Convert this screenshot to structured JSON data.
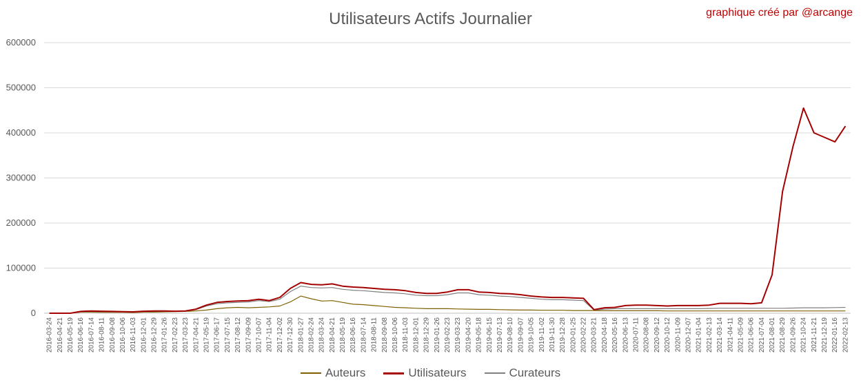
{
  "chart_data": {
    "type": "line",
    "title": "Utilisateurs Actifs Journalier",
    "credit": "graphique créé par @arcange",
    "ylim": [
      0,
      600000
    ],
    "yticks": [
      0,
      100000,
      200000,
      300000,
      400000,
      500000,
      600000
    ],
    "grid": "horizontal",
    "legend_position": "bottom",
    "x_tick_labels": [
      "2016-03-24",
      "2016-04-21",
      "2016-05-19",
      "2016-06-16",
      "2016-07-14",
      "2016-08-11",
      "2016-09-08",
      "2016-10-06",
      "2016-11-03",
      "2016-12-01",
      "2016-12-29",
      "2017-01-26",
      "2017-02-23",
      "2017-03-23",
      "2017-04-21",
      "2017-05-19",
      "2017-06-17",
      "2017-07-15",
      "2017-08-12",
      "2017-09-09",
      "2017-10-07",
      "2017-11-04",
      "2017-12-02",
      "2017-12-30",
      "2018-01-27",
      "2018-02-24",
      "2018-03-24",
      "2018-04-21",
      "2018-05-19",
      "2018-06-16",
      "2018-07-14",
      "2018-08-11",
      "2018-09-08",
      "2018-10-06",
      "2018-11-03",
      "2018-12-01",
      "2018-12-29",
      "2019-01-26",
      "2019-02-23",
      "2019-03-23",
      "2019-04-20",
      "2019-05-18",
      "2019-06-15",
      "2019-07-13",
      "2019-08-10",
      "2019-09-07",
      "2019-10-05",
      "2019-11-02",
      "2019-11-30",
      "2019-12-28",
      "2020-01-25",
      "2020-02-22",
      "2020-03-21",
      "2020-04-18",
      "2020-05-16",
      "2020-06-13",
      "2020-07-11",
      "2020-08-08",
      "2020-09-12",
      "2020-10-12",
      "2020-11-09",
      "2020-12-07",
      "2021-01-04",
      "2021-02-13",
      "2021-03-14",
      "2021-04-11",
      "2021-05-09",
      "2021-06-06",
      "2021-07-04",
      "2021-08-01",
      "2021-08-29",
      "2021-09-26",
      "2021-10-24",
      "2021-11-21",
      "2021-12-19",
      "2022-01-16",
      "2022-02-13"
    ],
    "series": [
      {
        "name": "Auteurs",
        "color": "#7f6000",
        "points": [
          [
            0,
            0
          ],
          [
            2,
            0
          ],
          [
            3,
            2500
          ],
          [
            4,
            2500
          ],
          [
            5,
            2000
          ],
          [
            6,
            2000
          ],
          [
            7,
            2000
          ],
          [
            8,
            1500
          ],
          [
            9,
            2500
          ],
          [
            10,
            2500
          ],
          [
            11,
            3000
          ],
          [
            12,
            3500
          ],
          [
            13,
            4000
          ],
          [
            14,
            5000
          ],
          [
            15,
            7000
          ],
          [
            16,
            10000
          ],
          [
            17,
            12000
          ],
          [
            18,
            13000
          ],
          [
            19,
            12000
          ],
          [
            20,
            13000
          ],
          [
            21,
            14000
          ],
          [
            22,
            16000
          ],
          [
            23,
            25000
          ],
          [
            24,
            38000
          ],
          [
            25,
            32000
          ],
          [
            26,
            27000
          ],
          [
            27,
            28000
          ],
          [
            28,
            24000
          ],
          [
            29,
            20000
          ],
          [
            30,
            19000
          ],
          [
            31,
            17000
          ],
          [
            32,
            15000
          ],
          [
            33,
            13000
          ],
          [
            34,
            12000
          ],
          [
            35,
            11000
          ],
          [
            36,
            10000
          ],
          [
            37,
            10000
          ],
          [
            38,
            10000
          ],
          [
            39,
            9500
          ],
          [
            40,
            9000
          ],
          [
            41,
            8500
          ],
          [
            42,
            8500
          ],
          [
            43,
            8000
          ],
          [
            44,
            7500
          ],
          [
            45,
            7000
          ],
          [
            46,
            7000
          ],
          [
            47,
            6500
          ],
          [
            48,
            6500
          ],
          [
            49,
            6500
          ],
          [
            50,
            6000
          ],
          [
            51,
            6000
          ],
          [
            52,
            6000
          ],
          [
            53,
            5500
          ],
          [
            54,
            5500
          ],
          [
            55,
            5500
          ],
          [
            56,
            5500
          ],
          [
            57,
            5500
          ],
          [
            58,
            5500
          ],
          [
            59,
            5000
          ],
          [
            60,
            5000
          ],
          [
            61,
            5000
          ],
          [
            62,
            5000
          ],
          [
            63,
            5000
          ],
          [
            64,
            5000
          ],
          [
            65,
            5000
          ],
          [
            66,
            5000
          ],
          [
            67,
            5000
          ],
          [
            68,
            5000
          ],
          [
            69,
            5000
          ],
          [
            70,
            5000
          ],
          [
            71,
            5000
          ],
          [
            72,
            5000
          ],
          [
            73,
            5000
          ],
          [
            74,
            5000
          ],
          [
            75,
            5000
          ],
          [
            76,
            5000
          ]
        ]
      },
      {
        "name": "Utilisateurs",
        "color": "#a50000",
        "points": [
          [
            0,
            0
          ],
          [
            2,
            0
          ],
          [
            3,
            4000
          ],
          [
            4,
            5000
          ],
          [
            5,
            4500
          ],
          [
            6,
            4000
          ],
          [
            7,
            3500
          ],
          [
            8,
            3000
          ],
          [
            9,
            4500
          ],
          [
            10,
            5000
          ],
          [
            11,
            5000
          ],
          [
            12,
            4500
          ],
          [
            13,
            5000
          ],
          [
            14,
            9000
          ],
          [
            15,
            18000
          ],
          [
            16,
            24000
          ],
          [
            17,
            26000
          ],
          [
            18,
            27000
          ],
          [
            19,
            28000
          ],
          [
            20,
            31000
          ],
          [
            21,
            28000
          ],
          [
            22,
            35000
          ],
          [
            23,
            55000
          ],
          [
            24,
            68000
          ],
          [
            25,
            64000
          ],
          [
            26,
            63000
          ],
          [
            27,
            65000
          ],
          [
            28,
            60000
          ],
          [
            29,
            58000
          ],
          [
            30,
            57000
          ],
          [
            31,
            55000
          ],
          [
            32,
            53000
          ],
          [
            33,
            52000
          ],
          [
            34,
            50000
          ],
          [
            35,
            46000
          ],
          [
            36,
            44000
          ],
          [
            37,
            44000
          ],
          [
            38,
            47000
          ],
          [
            39,
            52000
          ],
          [
            40,
            52000
          ],
          [
            41,
            47000
          ],
          [
            42,
            46000
          ],
          [
            43,
            44000
          ],
          [
            44,
            43000
          ],
          [
            45,
            41000
          ],
          [
            46,
            38000
          ],
          [
            47,
            36000
          ],
          [
            48,
            35000
          ],
          [
            49,
            35000
          ],
          [
            50,
            34000
          ],
          [
            51,
            33000
          ],
          [
            52,
            8000
          ],
          [
            53,
            12000
          ],
          [
            54,
            13000
          ],
          [
            55,
            17000
          ],
          [
            56,
            18000
          ],
          [
            57,
            18000
          ],
          [
            58,
            17000
          ],
          [
            59,
            16000
          ],
          [
            60,
            17000
          ],
          [
            61,
            17000
          ],
          [
            62,
            17000
          ],
          [
            63,
            18000
          ],
          [
            64,
            22000
          ],
          [
            65,
            22000
          ],
          [
            66,
            22000
          ],
          [
            67,
            21000
          ],
          [
            68,
            23000
          ],
          [
            69,
            85000
          ],
          [
            70,
            270000
          ],
          [
            71,
            370000
          ],
          [
            72,
            455000
          ],
          [
            73,
            400000
          ],
          [
            74,
            390000
          ],
          [
            75,
            380000
          ],
          [
            76,
            415000
          ]
        ]
      },
      {
        "name": "Curateurs",
        "color": "#7f7f7f",
        "points": [
          [
            0,
            0
          ],
          [
            2,
            0
          ],
          [
            3,
            3000
          ],
          [
            4,
            4000
          ],
          [
            5,
            3500
          ],
          [
            6,
            3000
          ],
          [
            7,
            3000
          ],
          [
            8,
            2500
          ],
          [
            9,
            3500
          ],
          [
            10,
            4000
          ],
          [
            11,
            4500
          ],
          [
            12,
            4000
          ],
          [
            13,
            4500
          ],
          [
            14,
            8000
          ],
          [
            15,
            16000
          ],
          [
            16,
            21000
          ],
          [
            17,
            23000
          ],
          [
            18,
            24000
          ],
          [
            19,
            25000
          ],
          [
            20,
            28000
          ],
          [
            21,
            26000
          ],
          [
            22,
            31000
          ],
          [
            23,
            48000
          ],
          [
            24,
            60000
          ],
          [
            25,
            57000
          ],
          [
            26,
            56000
          ],
          [
            27,
            57000
          ],
          [
            28,
            53000
          ],
          [
            29,
            51000
          ],
          [
            30,
            50000
          ],
          [
            31,
            48000
          ],
          [
            32,
            46000
          ],
          [
            33,
            45000
          ],
          [
            34,
            43000
          ],
          [
            35,
            40000
          ],
          [
            36,
            39000
          ],
          [
            37,
            39000
          ],
          [
            38,
            41000
          ],
          [
            39,
            45000
          ],
          [
            40,
            45000
          ],
          [
            41,
            41000
          ],
          [
            42,
            40000
          ],
          [
            43,
            38000
          ],
          [
            44,
            37000
          ],
          [
            45,
            35000
          ],
          [
            46,
            33000
          ],
          [
            47,
            31000
          ],
          [
            48,
            30000
          ],
          [
            49,
            30000
          ],
          [
            50,
            29000
          ],
          [
            51,
            28000
          ],
          [
            52,
            7000
          ],
          [
            53,
            9000
          ],
          [
            54,
            10000
          ],
          [
            55,
            10000
          ],
          [
            56,
            10000
          ],
          [
            57,
            10000
          ],
          [
            58,
            10000
          ],
          [
            59,
            10000
          ],
          [
            60,
            10000
          ],
          [
            61,
            10000
          ],
          [
            62,
            10000
          ],
          [
            63,
            10500
          ],
          [
            64,
            11000
          ],
          [
            65,
            11000
          ],
          [
            66,
            11000
          ],
          [
            67,
            11000
          ],
          [
            68,
            11000
          ],
          [
            69,
            11000
          ],
          [
            70,
            11000
          ],
          [
            71,
            11500
          ],
          [
            72,
            12000
          ],
          [
            73,
            12000
          ],
          [
            74,
            12000
          ],
          [
            75,
            12500
          ],
          [
            76,
            13000
          ]
        ]
      }
    ]
  }
}
